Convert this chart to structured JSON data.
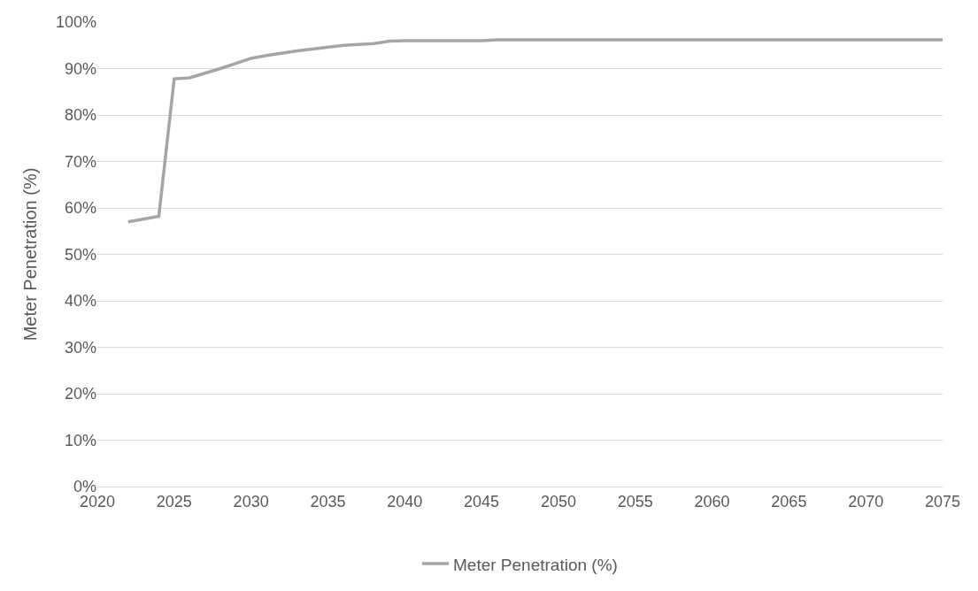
{
  "chart_data": {
    "type": "line",
    "ylabel": "Meter Penetration (%)",
    "x": [
      2022,
      2024,
      2025,
      2026,
      2028,
      2030,
      2031,
      2033,
      2036,
      2038,
      2039,
      2040,
      2045,
      2046,
      2075
    ],
    "series": [
      {
        "name": "Meter Penetration (%)",
        "color": "#a5a5a5",
        "values": [
          57,
          58.2,
          87.8,
          88,
          90,
          92.2,
          92.8,
          93.8,
          95,
          95.4,
          95.9,
          96,
          96,
          96.2,
          96.2
        ]
      }
    ],
    "xlim": [
      2020,
      2075
    ],
    "xticks": [
      2020,
      2025,
      2030,
      2035,
      2040,
      2045,
      2050,
      2055,
      2060,
      2065,
      2070,
      2075
    ],
    "ylim": [
      0,
      100
    ],
    "yticks": [
      {
        "value": 0,
        "label": "0%"
      },
      {
        "value": 10,
        "label": "10%"
      },
      {
        "value": 20,
        "label": "20%"
      },
      {
        "value": 30,
        "label": "30%"
      },
      {
        "value": 40,
        "label": "40%"
      },
      {
        "value": 50,
        "label": "50%"
      },
      {
        "value": 60,
        "label": "60%"
      },
      {
        "value": 70,
        "label": "70%"
      },
      {
        "value": 80,
        "label": "80%"
      },
      {
        "value": 90,
        "label": "90%"
      },
      {
        "value": 100,
        "label": "100%"
      }
    ],
    "grid": "y",
    "legend": "bottom",
    "line_style": "solid"
  }
}
